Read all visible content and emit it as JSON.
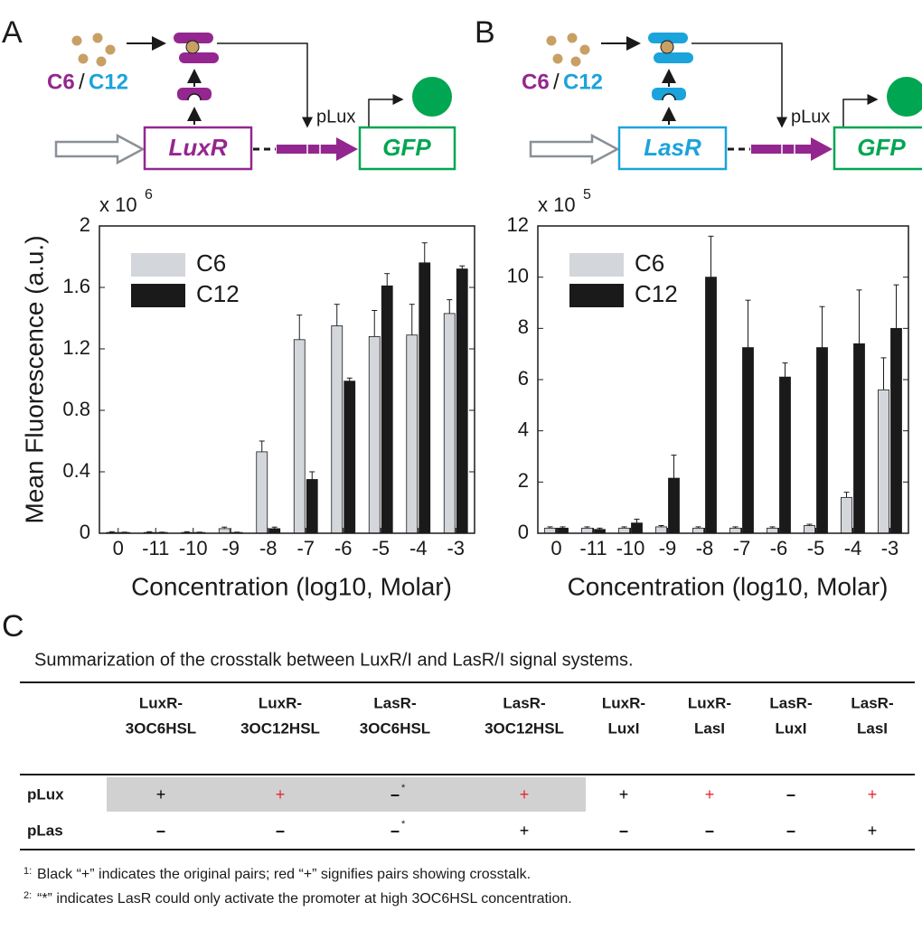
{
  "panels": {
    "a": "A",
    "b": "B",
    "c": "C"
  },
  "diagrams": [
    {
      "signal_1": "C6",
      "separator": "/",
      "signal_2": "C12",
      "receptor": "LuxR",
      "promoter": "pLux",
      "reporter": "GFP",
      "receptor_color": "#93278f"
    },
    {
      "signal_1": "C6",
      "separator": "/",
      "signal_2": "C12",
      "receptor": "LasR",
      "promoter": "pLux",
      "reporter": "GFP",
      "receptor_color": "#1ba3dc"
    }
  ],
  "chart_data": [
    {
      "type": "bar",
      "y_label": "Mean Fluorescence (a.u.)",
      "x_label": "Concentration (log10, Molar)",
      "y_multiplier": {
        "base": "x 10",
        "exponent": "6"
      },
      "categories": [
        "0",
        "-11",
        "-10",
        "-9",
        "-8",
        "-7",
        "-6",
        "-5",
        "-4",
        "-3"
      ],
      "series": [
        {
          "name": "C6",
          "color": "#d3d6da",
          "values": [
            0.005,
            0.005,
            0.005,
            0.03,
            0.53,
            1.26,
            1.35,
            1.28,
            1.29,
            1.43
          ],
          "errors": [
            0.005,
            0.005,
            0.005,
            0.01,
            0.07,
            0.16,
            0.14,
            0.17,
            0.2,
            0.09
          ]
        },
        {
          "name": "C12",
          "color": "#1a1a1a",
          "values": [
            0.005,
            0.005,
            0.005,
            0.005,
            0.03,
            0.35,
            0.99,
            1.61,
            1.76,
            1.72
          ],
          "errors": [
            0.002,
            0.002,
            0.002,
            0.002,
            0.01,
            0.05,
            0.02,
            0.08,
            0.13,
            0.02
          ]
        }
      ],
      "ylim": [
        0,
        2
      ],
      "yticks": [
        0,
        0.4,
        0.8,
        1.2,
        1.6,
        2
      ],
      "legend": "upper left"
    },
    {
      "type": "bar",
      "y_label": "",
      "x_label": "Concentration (log10, Molar)",
      "y_multiplier": {
        "base": "x 10",
        "exponent": "5"
      },
      "categories": [
        "0",
        "-11",
        "-10",
        "-9",
        "-8",
        "-7",
        "-6",
        "-5",
        "-4",
        "-3"
      ],
      "series": [
        {
          "name": "C6",
          "color": "#d3d6da",
          "values": [
            0.2,
            0.2,
            0.2,
            0.25,
            0.2,
            0.2,
            0.2,
            0.3,
            1.4,
            5.6
          ],
          "errors": [
            0.05,
            0.05,
            0.05,
            0.05,
            0.05,
            0.05,
            0.05,
            0.05,
            0.2,
            1.25
          ]
        },
        {
          "name": "C12",
          "color": "#1a1a1a",
          "values": [
            0.2,
            0.15,
            0.4,
            2.15,
            10.0,
            7.25,
            6.1,
            7.25,
            7.4,
            8.0
          ],
          "errors": [
            0.05,
            0.05,
            0.15,
            0.9,
            1.6,
            1.85,
            0.55,
            1.6,
            2.1,
            1.7
          ]
        }
      ],
      "ylim": [
        0,
        12
      ],
      "yticks": [
        0,
        2,
        4,
        6,
        8,
        10,
        12
      ],
      "legend": "upper left"
    }
  ],
  "table": {
    "caption": "Summarization of the crosstalk between LuxR/I and LasR/I signal systems.",
    "columns": [
      [
        "LuxR-",
        "3OC6HSL"
      ],
      [
        "LuxR-",
        "3OC12HSL"
      ],
      [
        "LasR-",
        "3OC6HSL"
      ],
      [
        "LasR-",
        "3OC12HSL"
      ],
      [
        "LuxR-",
        "LuxI"
      ],
      [
        "LuxR-",
        "LasI"
      ],
      [
        "LasR-",
        "LuxI"
      ],
      [
        "LasR-",
        "LasI"
      ]
    ],
    "rows": [
      {
        "label": "pLux",
        "cells": [
          {
            "text": "+",
            "color": "#000000"
          },
          {
            "text": "+",
            "color": "#e8262c"
          },
          {
            "text": "–",
            "sup": "*",
            "color": "#000000"
          },
          {
            "text": "+",
            "color": "#e8262c"
          },
          {
            "text": "+",
            "color": "#000000"
          },
          {
            "text": "+",
            "color": "#e8262c"
          },
          {
            "text": "–",
            "color": "#000000"
          },
          {
            "text": "+",
            "color": "#e8262c"
          }
        ]
      },
      {
        "label": "pLas",
        "cells": [
          {
            "text": "–",
            "color": "#000000"
          },
          {
            "text": "–",
            "color": "#000000"
          },
          {
            "text": "–",
            "sup": "*",
            "color": "#000000"
          },
          {
            "text": "+",
            "color": "#000000"
          },
          {
            "text": "–",
            "color": "#000000"
          },
          {
            "text": "–",
            "color": "#000000"
          },
          {
            "text": "–",
            "color": "#000000"
          },
          {
            "text": "+",
            "color": "#000000"
          }
        ]
      }
    ],
    "footnotes": [
      {
        "mark": "1:",
        "text": "Black “+” indicates the original pairs; red “+” signifies pairs showing crosstalk."
      },
      {
        "mark": "2:",
        "text": "“*” indicates LasR could only activate the promoter at high 3OC6HSL concentration."
      }
    ]
  }
}
